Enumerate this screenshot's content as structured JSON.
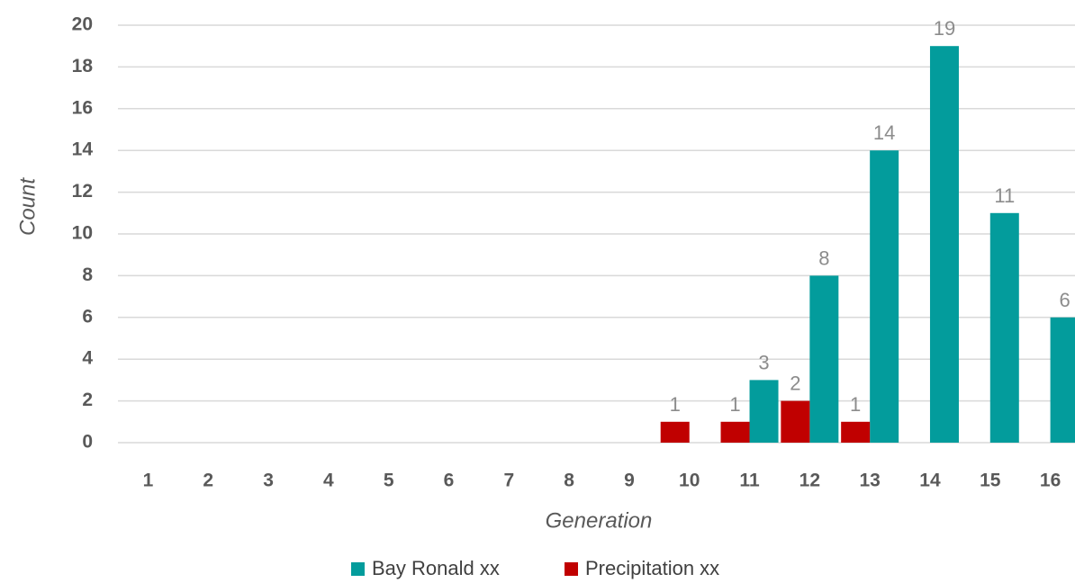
{
  "chart_data": {
    "type": "bar",
    "categories": [
      "1",
      "2",
      "3",
      "4",
      "5",
      "6",
      "7",
      "8",
      "9",
      "10",
      "11",
      "12",
      "13",
      "14",
      "15",
      "16"
    ],
    "series": [
      {
        "name": "Bay Ronald xx",
        "color": "#039c9c",
        "values": [
          0,
          0,
          0,
          0,
          0,
          0,
          0,
          0,
          0,
          0,
          3,
          8,
          14,
          19,
          11,
          6
        ]
      },
      {
        "name": "Precipitation xx",
        "color": "#c00000",
        "values": [
          0,
          0,
          0,
          0,
          0,
          0,
          0,
          0,
          0,
          1,
          1,
          2,
          1,
          0,
          0,
          0
        ]
      }
    ],
    "xlabel": "Generation",
    "ylabel": "Count",
    "ylim": [
      0,
      20
    ],
    "yticks": [
      0,
      2,
      4,
      6,
      8,
      10,
      12,
      14,
      16,
      18,
      20
    ],
    "grid": true,
    "legend": "bottom"
  }
}
